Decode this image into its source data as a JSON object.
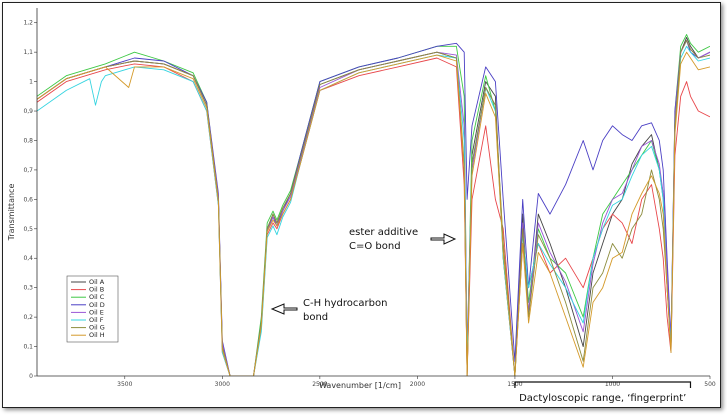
{
  "chart_data": {
    "type": "line",
    "title": "",
    "xlabel": "Wavenumber [1/cm]",
    "ylabel": "Transmittance",
    "xlim": [
      3950,
      500
    ],
    "ylim": [
      0,
      1.25
    ],
    "x_reversed": true,
    "x_ticks": [
      3500,
      3000,
      2500,
      2000,
      1500,
      1000,
      500
    ],
    "y_ticks": [
      0,
      0.1,
      0.2,
      0.3,
      0.4,
      0.5,
      0.6,
      0.7,
      0.8,
      0.9,
      1,
      1.1,
      1.2
    ],
    "y_tick_labels": [
      "0",
      "0,1",
      "0,2",
      "0,3",
      "0,4",
      "0,5",
      "0,6",
      "0,7",
      "0,8",
      "0,9",
      "1",
      "1,1",
      "1,2"
    ],
    "grid": false,
    "legend_position": "bottom-left",
    "series": [
      {
        "name": "Oil A",
        "color": "#444444",
        "x": [
          3950,
          3800,
          3600,
          3450,
          3300,
          3150,
          3080,
          3020,
          3000,
          2960,
          2840,
          2800,
          2770,
          2740,
          2720,
          2690,
          2650,
          2600,
          2500,
          2300,
          2100,
          1900,
          1800,
          1760,
          1745,
          1720,
          1650,
          1600,
          1560,
          1500,
          1460,
          1430,
          1380,
          1320,
          1240,
          1150,
          1100,
          1050,
          1000,
          950,
          900,
          850,
          800,
          760,
          740,
          720,
          700,
          680,
          650,
          620,
          600,
          560,
          500
        ],
        "y": [
          0.94,
          1.01,
          1.05,
          1.07,
          1.06,
          1.02,
          0.92,
          0.6,
          0.1,
          0.0,
          0.0,
          0.18,
          0.5,
          0.55,
          0.52,
          0.57,
          0.62,
          0.74,
          0.99,
          1.04,
          1.07,
          1.1,
          1.08,
          0.7,
          0.0,
          0.75,
          1.0,
          0.95,
          0.4,
          0.0,
          0.55,
          0.2,
          0.55,
          0.45,
          0.3,
          0.1,
          0.35,
          0.45,
          0.55,
          0.6,
          0.72,
          0.78,
          0.82,
          0.7,
          0.62,
          0.35,
          0.1,
          0.85,
          1.1,
          1.15,
          1.12,
          1.08,
          1.1
        ]
      },
      {
        "name": "Oil B",
        "color": "#e8474b",
        "x": [
          3950,
          3800,
          3600,
          3450,
          3300,
          3150,
          3080,
          3020,
          3000,
          2960,
          2840,
          2800,
          2770,
          2740,
          2720,
          2690,
          2650,
          2600,
          2500,
          2300,
          2100,
          1900,
          1800,
          1760,
          1745,
          1720,
          1650,
          1600,
          1560,
          1500,
          1460,
          1430,
          1380,
          1320,
          1240,
          1150,
          1100,
          1050,
          1000,
          950,
          900,
          850,
          800,
          760,
          740,
          720,
          700,
          680,
          650,
          620,
          600,
          560,
          500
        ],
        "y": [
          0.93,
          1.0,
          1.04,
          1.06,
          1.05,
          1.0,
          0.9,
          0.58,
          0.08,
          0.0,
          0.0,
          0.16,
          0.48,
          0.52,
          0.5,
          0.55,
          0.6,
          0.72,
          0.97,
          1.02,
          1.05,
          1.08,
          1.05,
          0.65,
          0.0,
          0.6,
          0.85,
          0.6,
          0.5,
          0.0,
          0.45,
          0.3,
          0.45,
          0.35,
          0.4,
          0.3,
          0.4,
          0.5,
          0.55,
          0.52,
          0.45,
          0.6,
          0.65,
          0.5,
          0.4,
          0.2,
          0.08,
          0.75,
          0.95,
          1.0,
          0.95,
          0.9,
          0.88
        ]
      },
      {
        "name": "Oil C",
        "color": "#3ec845",
        "x": [
          3950,
          3800,
          3600,
          3450,
          3300,
          3150,
          3080,
          3020,
          3000,
          2960,
          2840,
          2800,
          2770,
          2740,
          2720,
          2690,
          2650,
          2600,
          2500,
          2300,
          2100,
          1900,
          1800,
          1760,
          1745,
          1720,
          1650,
          1600,
          1560,
          1500,
          1460,
          1430,
          1380,
          1320,
          1240,
          1150,
          1100,
          1050,
          1000,
          950,
          900,
          850,
          800,
          760,
          740,
          720,
          700,
          680,
          650,
          620,
          600,
          560,
          500
        ],
        "y": [
          0.95,
          1.02,
          1.06,
          1.1,
          1.07,
          1.03,
          0.93,
          0.6,
          0.1,
          0.0,
          0.0,
          0.2,
          0.52,
          0.56,
          0.53,
          0.58,
          0.63,
          0.75,
          1.0,
          1.05,
          1.08,
          1.12,
          1.12,
          0.95,
          0.05,
          0.8,
          1.02,
          0.9,
          0.45,
          0.0,
          0.5,
          0.25,
          0.5,
          0.4,
          0.35,
          0.2,
          0.4,
          0.55,
          0.6,
          0.65,
          0.7,
          0.75,
          0.8,
          0.7,
          0.6,
          0.3,
          0.1,
          0.9,
          1.12,
          1.16,
          1.13,
          1.1,
          1.12
        ]
      },
      {
        "name": "Oil D",
        "color": "#4a3fc4",
        "x": [
          3950,
          3800,
          3600,
          3450,
          3300,
          3150,
          3080,
          3020,
          3000,
          2960,
          2840,
          2800,
          2770,
          2740,
          2720,
          2690,
          2650,
          2600,
          2500,
          2300,
          2100,
          1900,
          1800,
          1760,
          1745,
          1720,
          1650,
          1600,
          1560,
          1500,
          1460,
          1430,
          1380,
          1320,
          1240,
          1150,
          1100,
          1050,
          1000,
          950,
          900,
          850,
          800,
          760,
          740,
          720,
          700,
          680,
          650,
          620,
          600,
          560,
          500
        ],
        "y": [
          0.94,
          1.01,
          1.05,
          1.08,
          1.07,
          1.02,
          0.93,
          0.62,
          0.12,
          0.0,
          0.0,
          0.18,
          0.5,
          0.54,
          0.51,
          0.56,
          0.62,
          0.75,
          1.0,
          1.05,
          1.08,
          1.12,
          1.13,
          1.1,
          0.6,
          0.85,
          1.05,
          1.0,
          0.6,
          0.05,
          0.6,
          0.3,
          0.62,
          0.55,
          0.65,
          0.8,
          0.7,
          0.8,
          0.85,
          0.82,
          0.8,
          0.85,
          0.86,
          0.8,
          0.7,
          0.4,
          0.12,
          0.9,
          1.1,
          1.14,
          1.1,
          1.08,
          1.1
        ]
      },
      {
        "name": "Oil E",
        "color": "#9a56d6",
        "x": [
          3950,
          3800,
          3600,
          3450,
          3300,
          3150,
          3080,
          3020,
          3000,
          2960,
          2840,
          2800,
          2770,
          2740,
          2720,
          2690,
          2650,
          2600,
          2500,
          2300,
          2100,
          1900,
          1800,
          1760,
          1745,
          1720,
          1650,
          1600,
          1560,
          1500,
          1460,
          1430,
          1380,
          1320,
          1240,
          1150,
          1100,
          1050,
          1000,
          950,
          900,
          850,
          800,
          760,
          740,
          720,
          700,
          680,
          650,
          620,
          600,
          560,
          500
        ],
        "y": [
          0.94,
          1.01,
          1.05,
          1.07,
          1.06,
          1.02,
          0.92,
          0.61,
          0.11,
          0.0,
          0.0,
          0.18,
          0.49,
          0.54,
          0.52,
          0.56,
          0.61,
          0.73,
          0.98,
          1.04,
          1.07,
          1.1,
          1.09,
          0.85,
          0.1,
          0.7,
          0.98,
          0.92,
          0.42,
          0.0,
          0.52,
          0.22,
          0.52,
          0.42,
          0.32,
          0.15,
          0.38,
          0.52,
          0.6,
          0.62,
          0.7,
          0.78,
          0.8,
          0.72,
          0.62,
          0.35,
          0.1,
          0.88,
          1.1,
          1.14,
          1.11,
          1.08,
          1.1
        ]
      },
      {
        "name": "Oil F",
        "color": "#35d4e0",
        "x": [
          3950,
          3800,
          3680,
          3650,
          3620,
          3600,
          3450,
          3300,
          3150,
          3080,
          3020,
          3000,
          2960,
          2840,
          2800,
          2770,
          2740,
          2720,
          2690,
          2650,
          2600,
          2500,
          2300,
          2100,
          1900,
          1800,
          1760,
          1745,
          1720,
          1650,
          1600,
          1560,
          1500,
          1460,
          1430,
          1380,
          1320,
          1240,
          1150,
          1100,
          1050,
          1000,
          950,
          900,
          850,
          800,
          760,
          740,
          720,
          700,
          680,
          650,
          620,
          600,
          560,
          500
        ],
        "y": [
          0.9,
          0.97,
          1.01,
          0.92,
          1.0,
          1.02,
          1.05,
          1.04,
          1.0,
          0.9,
          0.58,
          0.08,
          0.0,
          0.0,
          0.15,
          0.47,
          0.51,
          0.48,
          0.54,
          0.59,
          0.72,
          0.97,
          1.03,
          1.06,
          1.09,
          1.08,
          0.8,
          0.05,
          0.72,
          0.98,
          0.9,
          0.4,
          0.0,
          0.48,
          0.3,
          0.45,
          0.38,
          0.3,
          0.18,
          0.4,
          0.5,
          0.58,
          0.6,
          0.68,
          0.75,
          0.78,
          0.7,
          0.6,
          0.3,
          0.1,
          0.85,
          1.08,
          1.12,
          1.1,
          1.07,
          1.08
        ]
      },
      {
        "name": "Oil G",
        "color": "#8c8c3c",
        "x": [
          3950,
          3800,
          3600,
          3450,
          3300,
          3150,
          3080,
          3020,
          3000,
          2960,
          2840,
          2800,
          2770,
          2740,
          2720,
          2690,
          2650,
          2600,
          2500,
          2300,
          2100,
          1900,
          1800,
          1760,
          1745,
          1720,
          1650,
          1600,
          1560,
          1500,
          1460,
          1430,
          1380,
          1320,
          1240,
          1150,
          1100,
          1050,
          1000,
          950,
          900,
          850,
          800,
          760,
          740,
          720,
          700,
          680,
          650,
          620,
          600,
          560,
          500
        ],
        "y": [
          0.94,
          1.01,
          1.05,
          1.07,
          1.06,
          1.02,
          0.92,
          0.6,
          0.1,
          0.0,
          0.0,
          0.18,
          0.5,
          0.55,
          0.52,
          0.57,
          0.62,
          0.74,
          0.99,
          1.04,
          1.07,
          1.1,
          1.08,
          0.72,
          0.0,
          0.72,
          0.98,
          0.92,
          0.45,
          0.0,
          0.5,
          0.2,
          0.48,
          0.4,
          0.25,
          0.05,
          0.3,
          0.35,
          0.45,
          0.4,
          0.5,
          0.55,
          0.7,
          0.6,
          0.5,
          0.3,
          0.08,
          0.85,
          1.1,
          1.14,
          1.11,
          1.08,
          1.09
        ]
      },
      {
        "name": "Oil H",
        "color": "#d49a2a",
        "x": [
          3950,
          3800,
          3600,
          3480,
          3450,
          3300,
          3150,
          3080,
          3020,
          3000,
          2960,
          2840,
          2800,
          2770,
          2740,
          2720,
          2690,
          2650,
          2600,
          2500,
          2300,
          2100,
          1900,
          1800,
          1760,
          1745,
          1720,
          1650,
          1600,
          1560,
          1500,
          1460,
          1430,
          1380,
          1320,
          1240,
          1150,
          1100,
          1050,
          1000,
          950,
          900,
          850,
          800,
          760,
          740,
          720,
          700,
          680,
          650,
          620,
          600,
          560,
          500
        ],
        "y": [
          0.94,
          1.01,
          1.05,
          0.98,
          1.05,
          1.05,
          1.01,
          0.91,
          0.59,
          0.09,
          0.0,
          0.0,
          0.17,
          0.49,
          0.53,
          0.51,
          0.55,
          0.6,
          0.72,
          0.97,
          1.03,
          1.06,
          1.09,
          1.07,
          0.7,
          0.0,
          0.68,
          0.96,
          0.88,
          0.42,
          0.0,
          0.45,
          0.18,
          0.42,
          0.35,
          0.2,
          0.03,
          0.25,
          0.3,
          0.4,
          0.42,
          0.55,
          0.62,
          0.68,
          0.62,
          0.55,
          0.3,
          0.08,
          0.82,
          1.06,
          1.1,
          1.08,
          1.04,
          1.05
        ]
      }
    ],
    "annotations": [
      {
        "id": "ester",
        "lines": [
          "ester additive",
          "C=O bond"
        ],
        "wavenumber": 1760
      },
      {
        "id": "ch",
        "lines": [
          "C-H hydrocarbon",
          "bond"
        ],
        "wavenumber": 2840
      },
      {
        "id": "range",
        "text": "Dactyloscopic range, ‘fingerprint’",
        "from": 1500,
        "to": 600
      }
    ]
  }
}
